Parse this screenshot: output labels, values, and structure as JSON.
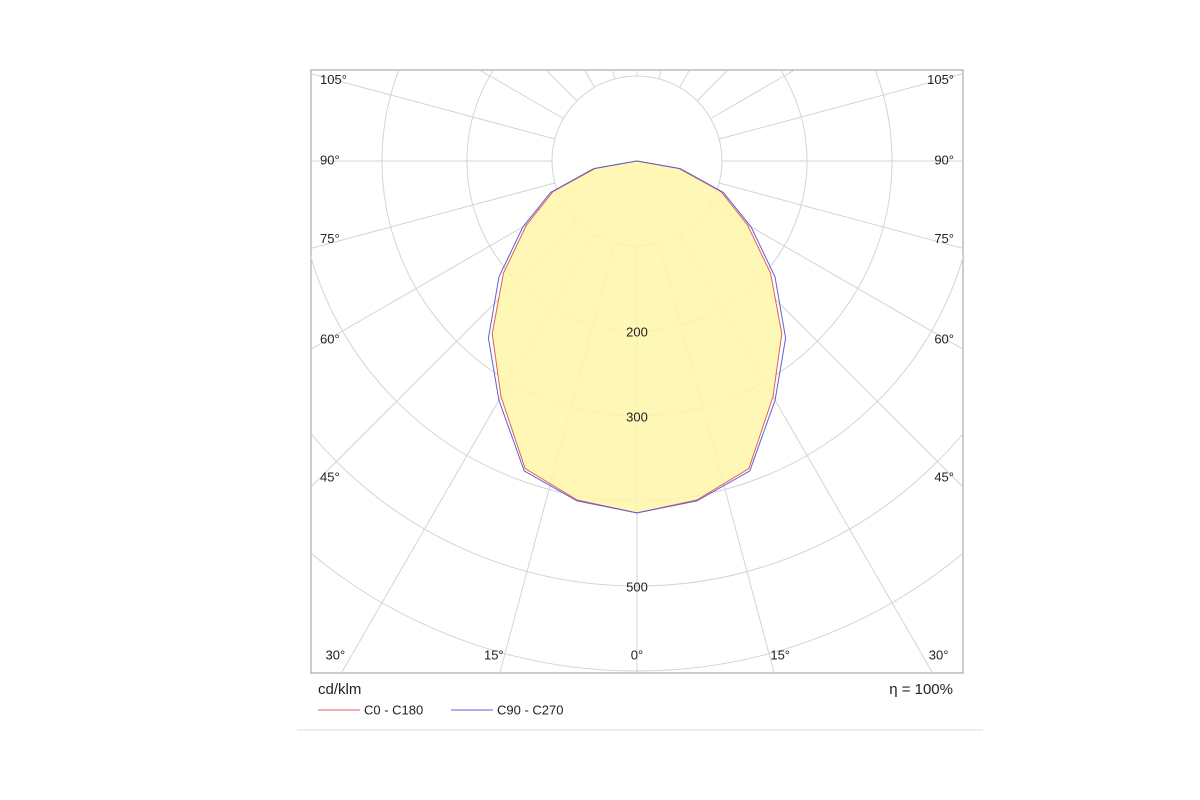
{
  "chart_data": {
    "type": "polar",
    "unit_label": "cd/klm",
    "efficiency_label": "η = 100%",
    "angles": [
      0,
      10,
      20,
      30,
      40,
      50,
      60,
      70,
      80,
      90
    ],
    "series": [
      {
        "name": "C0 - C180",
        "color": "#e06060",
        "values": [
          414,
          405,
          385,
          320,
          265,
          205,
          150,
          105,
          50,
          0
        ]
      },
      {
        "name": "C90 - C270",
        "color": "#6060d0",
        "values": [
          414,
          406,
          388,
          325,
          272,
          212,
          155,
          108,
          52,
          0
        ]
      }
    ],
    "fill_color": "#fff6a8",
    "rings": [
      100,
      200,
      300,
      400,
      500,
      600
    ],
    "rticks": [
      200,
      300,
      500
    ],
    "angle_ticks": [
      {
        "value": 0,
        "label": "0°"
      },
      {
        "value": 15,
        "label": "15°"
      },
      {
        "value": 30,
        "label": "30°"
      },
      {
        "value": 45,
        "label": "45°"
      },
      {
        "value": 60,
        "label": "60°"
      },
      {
        "value": 75,
        "label": "75°"
      },
      {
        "value": 90,
        "label": "90°"
      },
      {
        "value": 105,
        "label": "105°"
      }
    ]
  }
}
